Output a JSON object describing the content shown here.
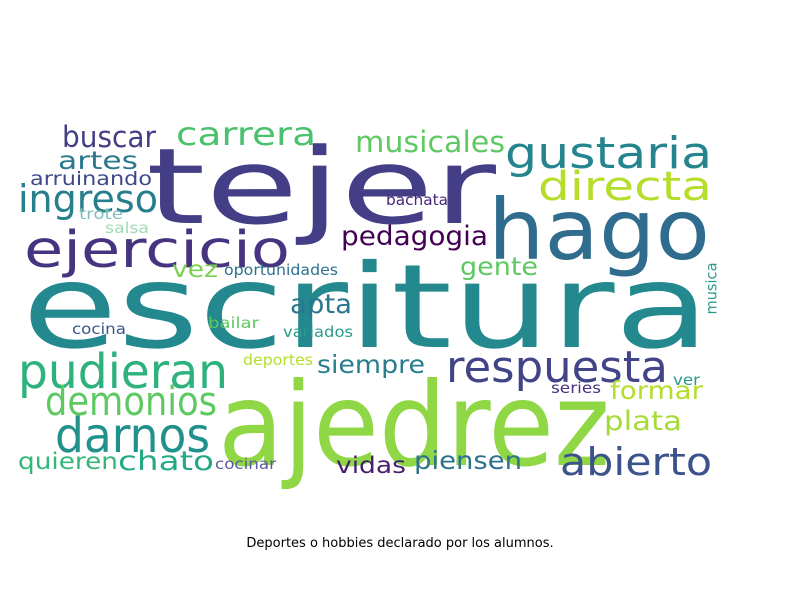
{
  "caption": "Deportes o hobbies declarado por los alumnos.",
  "words": [
    {
      "text": "escritura",
      "color": "#23898e"
    },
    {
      "text": "tejer",
      "color": "#433e85"
    },
    {
      "text": "ajedrez",
      "color": "#8fd744"
    },
    {
      "text": "hago",
      "color": "#2f6c8e"
    },
    {
      "text": "gustaria",
      "color": "#25858e"
    },
    {
      "text": "ejercicio",
      "color": "#463480"
    },
    {
      "text": "directa",
      "color": "#b5de2b"
    },
    {
      "text": "respuesta",
      "color": "#414487"
    },
    {
      "text": "pudieran",
      "color": "#2db27d"
    },
    {
      "text": "darnos",
      "color": "#21918c"
    },
    {
      "text": "demonios",
      "color": "#5ec962"
    },
    {
      "text": "abierto",
      "color": "#3b528b"
    },
    {
      "text": "carrera",
      "color": "#4ac16d"
    },
    {
      "text": "ingreso",
      "color": "#277f8e"
    },
    {
      "text": "buscar",
      "color": "#433e85"
    },
    {
      "text": "artes",
      "color": "#2a788e"
    },
    {
      "text": "musicales",
      "color": "#5ec962"
    },
    {
      "text": "pedagogia",
      "color": "#440154"
    },
    {
      "text": "apta",
      "color": "#2a788e"
    },
    {
      "text": "vez",
      "color": "#7ad151"
    },
    {
      "text": "gente",
      "color": "#5ec962"
    },
    {
      "text": "siempre",
      "color": "#287d8e"
    },
    {
      "text": "formar",
      "color": "#b5de2b"
    },
    {
      "text": "plata",
      "color": "#a5db36"
    },
    {
      "text": "chato",
      "color": "#23a983"
    },
    {
      "text": "quieren",
      "color": "#35b779"
    },
    {
      "text": "vidas",
      "color": "#481f70"
    },
    {
      "text": "piensen",
      "color": "#2c728e"
    },
    {
      "text": "arruinando",
      "color": "#3e4989"
    },
    {
      "text": "trote",
      "color": "#7fbfbd"
    },
    {
      "text": "salsa",
      "color": "#a0dab5"
    },
    {
      "text": "oportunidades",
      "color": "#2c728e"
    },
    {
      "text": "bachata",
      "color": "#482878"
    },
    {
      "text": "cocina",
      "color": "#39568c"
    },
    {
      "text": "bailar",
      "color": "#5ec962"
    },
    {
      "text": "variados",
      "color": "#2a9b8a"
    },
    {
      "text": "deportes",
      "color": "#b5de2b"
    },
    {
      "text": "series",
      "color": "#46327e"
    },
    {
      "text": "ver",
      "color": "#2a9b8a"
    },
    {
      "text": "cocinar",
      "color": "#5c5a9a"
    },
    {
      "text": "musica",
      "color": "#2a9b8a"
    }
  ]
}
